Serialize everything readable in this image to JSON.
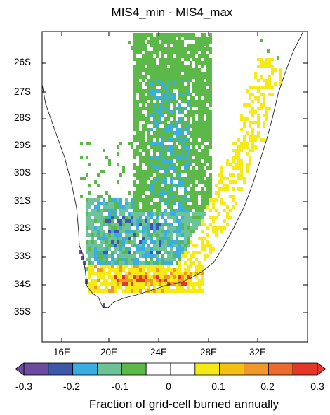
{
  "title": "MIS4_min - MIS4_max",
  "lat_labels": [
    "26S",
    "27S",
    "28S",
    "29S",
    "30S",
    "31S",
    "32S",
    "33S",
    "34S",
    "35S"
  ],
  "lon_labels": [
    "16E",
    "20E",
    "24E",
    "28E",
    "32E"
  ],
  "colorbar": {
    "title": "Fraction of grid-cell burned annually",
    "tick_labels": [
      "-0.3",
      "-0.2",
      "-0.1",
      "0",
      "0.1",
      "0.2",
      "0.3"
    ],
    "colors": [
      "#6a4ba0",
      "#3c58a8",
      "#3aaee2",
      "#6cc397",
      "#5cb848",
      "#ffffff",
      "#ffffff",
      "#f5ea14",
      "#f6c012",
      "#f0982a",
      "#ec6b2c",
      "#e5362a"
    ]
  },
  "map_data": {
    "extent_lon": [
      14.5,
      35.5
    ],
    "extent_lat": [
      -25,
      -36.5
    ],
    "regions": [
      {
        "name": "interior-green-band",
        "value": -0.05,
        "color": "#5cb848"
      },
      {
        "name": "interior-light-blue",
        "value": -0.12,
        "color": "#3aaee2"
      },
      {
        "name": "south-west-teal",
        "value": -0.15,
        "color": "#6cc397"
      },
      {
        "name": "south-west-dark-blue",
        "value": -0.2,
        "color": "#3c58a8"
      },
      {
        "name": "east-coast-yellow",
        "value": 0.08,
        "color": "#f5ea14"
      },
      {
        "name": "south-coast-orange",
        "value": 0.2,
        "color": "#f0982a"
      },
      {
        "name": "south-coast-red",
        "value": 0.3,
        "color": "#e5362a"
      },
      {
        "name": "west-coast-purple",
        "value": -0.3,
        "color": "#6a4ba0"
      }
    ]
  }
}
